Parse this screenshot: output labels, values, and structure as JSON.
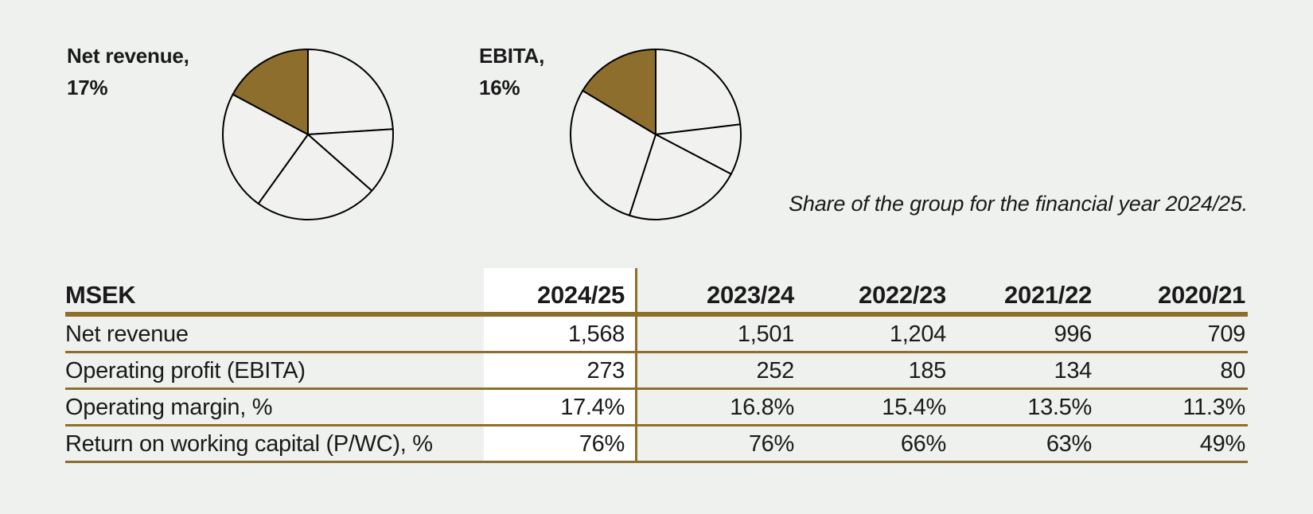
{
  "colors": {
    "background": "#eff1ef",
    "accent_brown": "#8d6e2d",
    "table_line_brown": "#8d6e2d",
    "text": "#1a1a1a",
    "highlight_column_bg": "#ffffff",
    "pie_stroke": "#000000",
    "pie_slice_fill": "#f1f2f0"
  },
  "pies": [
    {
      "label_lines": [
        "Net revenue,",
        "17%"
      ]
    },
    {
      "label_lines": [
        "EBITA,",
        "16%"
      ]
    }
  ],
  "caption": "Share of the group for the financial year 2024/25.",
  "chart_data": [
    {
      "type": "pie",
      "title": "Net revenue, 17%",
      "highlighted_share_label": "Net revenue",
      "highlighted_share_pct": 17,
      "values": [
        24.0,
        12.5,
        23.4,
        22.9,
        17.2
      ],
      "highlight_index": 4,
      "start_angle_deg": 0,
      "direction": "clockwise"
    },
    {
      "type": "pie",
      "title": "EBITA, 16%",
      "highlighted_share_label": "EBITA",
      "highlighted_share_pct": 16,
      "values": [
        23.1,
        9.6,
        22.3,
        28.6,
        16.4
      ],
      "highlight_index": 4,
      "start_angle_deg": 0,
      "direction": "clockwise"
    },
    {
      "type": "table",
      "unit_header": "MSEK",
      "columns": [
        "2024/25",
        "2023/24",
        "2022/23",
        "2021/22",
        "2020/21"
      ],
      "highlighted_column": "2024/25",
      "rows": [
        {
          "label": "Net revenue",
          "values": [
            "1,568",
            "1,501",
            "1,204",
            "996",
            "709"
          ]
        },
        {
          "label": "Operating profit (EBITA)",
          "values": [
            "273",
            "252",
            "185",
            "134",
            "80"
          ]
        },
        {
          "label": "Operating margin, %",
          "values": [
            "17.4%",
            "16.8%",
            "15.4%",
            "13.5%",
            "11.3%"
          ]
        },
        {
          "label": "Return on working capital (P/WC), %",
          "values": [
            "76%",
            "76%",
            "66%",
            "63%",
            "49%"
          ]
        }
      ]
    }
  ],
  "table": {
    "unit_header": "MSEK",
    "columns": [
      "2024/25",
      "2023/24",
      "2022/23",
      "2021/22",
      "2020/21"
    ],
    "highlighted_column": "2024/25",
    "rows": [
      {
        "label": "Net revenue",
        "values": [
          "1,568",
          "1,501",
          "1,204",
          "996",
          "709"
        ]
      },
      {
        "label": "Operating profit (EBITA)",
        "values": [
          "273",
          "252",
          "185",
          "134",
          "80"
        ]
      },
      {
        "label": "Operating margin, %",
        "values": [
          "17.4%",
          "16.8%",
          "15.4%",
          "13.5%",
          "11.3%"
        ]
      },
      {
        "label": "Return on working capital (P/WC), %",
        "values": [
          "76%",
          "76%",
          "66%",
          "63%",
          "49%"
        ]
      }
    ]
  }
}
